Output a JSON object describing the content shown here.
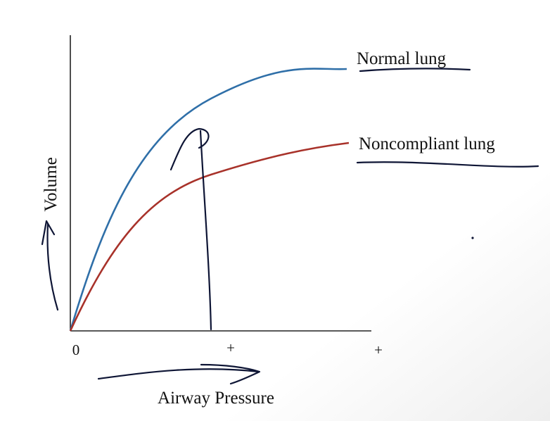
{
  "axes": {
    "y_label": "Volume",
    "x_label": "Airway Pressure",
    "x_ticks": [
      "0",
      "+",
      "+"
    ]
  },
  "curves": [
    {
      "label": "Normal lung"
    },
    {
      "label": "Noncompliant lung"
    }
  ]
}
